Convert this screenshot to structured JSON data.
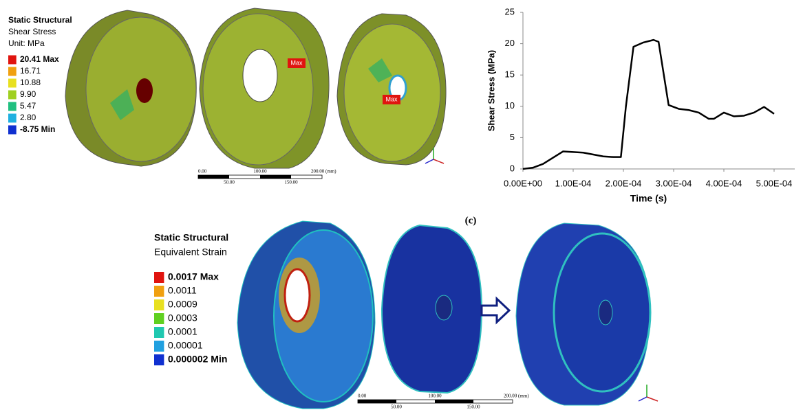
{
  "shear_panel": {
    "legend_title": "Static Structural",
    "legend_quantity": "Shear Stress",
    "legend_unit": "Unit: MPa",
    "legend": [
      {
        "label": "20.41 Max",
        "color": "#e0140f"
      },
      {
        "label": "16.71",
        "color": "#f0a010"
      },
      {
        "label": "10.88",
        "color": "#e8e020"
      },
      {
        "label": "9.90",
        "color": "#9fd020"
      },
      {
        "label": "5.47",
        "color": "#20c080"
      },
      {
        "label": "2.80",
        "color": "#20b0e0"
      },
      {
        "label": "-8.75 Min",
        "color": "#1030d0"
      }
    ],
    "markers": [
      "Max",
      "Max"
    ],
    "scale_top": [
      "0.00",
      "100.00",
      "200.00 (mm)"
    ],
    "scale_bottom": [
      "50.00",
      "150.00"
    ]
  },
  "chart_data": {
    "type": "line",
    "x_label": "Time (s)",
    "y_label": "Shear Stress (MPa)",
    "x": [
      0,
      2e-05,
      4e-05,
      6e-05,
      8e-05,
      0.0001,
      0.00012,
      0.00014,
      0.00016,
      0.00018,
      0.000195,
      0.000205,
      0.00022,
      0.00024,
      0.00026,
      0.00027,
      0.00029,
      0.00031,
      0.00033,
      0.00035,
      0.00037,
      0.00038,
      0.0004,
      0.00042,
      0.00044,
      0.00046,
      0.00048,
      0.0005
    ],
    "series": [
      {
        "color": "#000000",
        "values": [
          0,
          0.2,
          0.8,
          1.8,
          2.8,
          2.7,
          2.6,
          2.3,
          2.0,
          1.9,
          1.9,
          10,
          19.5,
          20.2,
          20.6,
          20.3,
          10.2,
          9.6,
          9.4,
          9.0,
          8.0,
          8.0,
          9.0,
          8.4,
          8.5,
          9.0,
          9.9,
          8.8
        ]
      }
    ],
    "xlim": [
      0,
      0.0005
    ],
    "xticks": [
      {
        "value": 0,
        "label": "0.00E+00"
      },
      {
        "value": 0.0001,
        "label": "1.00E-04"
      },
      {
        "value": 0.0002,
        "label": "2.00E-04"
      },
      {
        "value": 0.0003,
        "label": "3.00E-04"
      },
      {
        "value": 0.0004,
        "label": "4.00E-04"
      },
      {
        "value": 0.0005,
        "label": "5.00E-04"
      }
    ],
    "ylim": [
      0,
      25
    ],
    "yticks": [
      0,
      5,
      10,
      15,
      20,
      25
    ],
    "grid": false
  },
  "caption": "(c)",
  "strain_panel": {
    "legend_title": "Static Structural",
    "legend_quantity": "Equivalent Strain",
    "legend": [
      {
        "label": "0.0017 Max",
        "color": "#e0140f"
      },
      {
        "label": "0.0011",
        "color": "#f0a010"
      },
      {
        "label": "0.0009",
        "color": "#e8e020"
      },
      {
        "label": "0.0003",
        "color": "#60d020"
      },
      {
        "label": "0.0001",
        "color": "#20c8b0"
      },
      {
        "label": "0.00001",
        "color": "#20a0e0"
      },
      {
        "label": "0.000002 Min",
        "color": "#1030d0"
      }
    ],
    "scale_top": [
      "0.00",
      "100.00",
      "200.00 (mm)"
    ],
    "scale_bottom": [
      "50.00",
      "150.00"
    ]
  }
}
